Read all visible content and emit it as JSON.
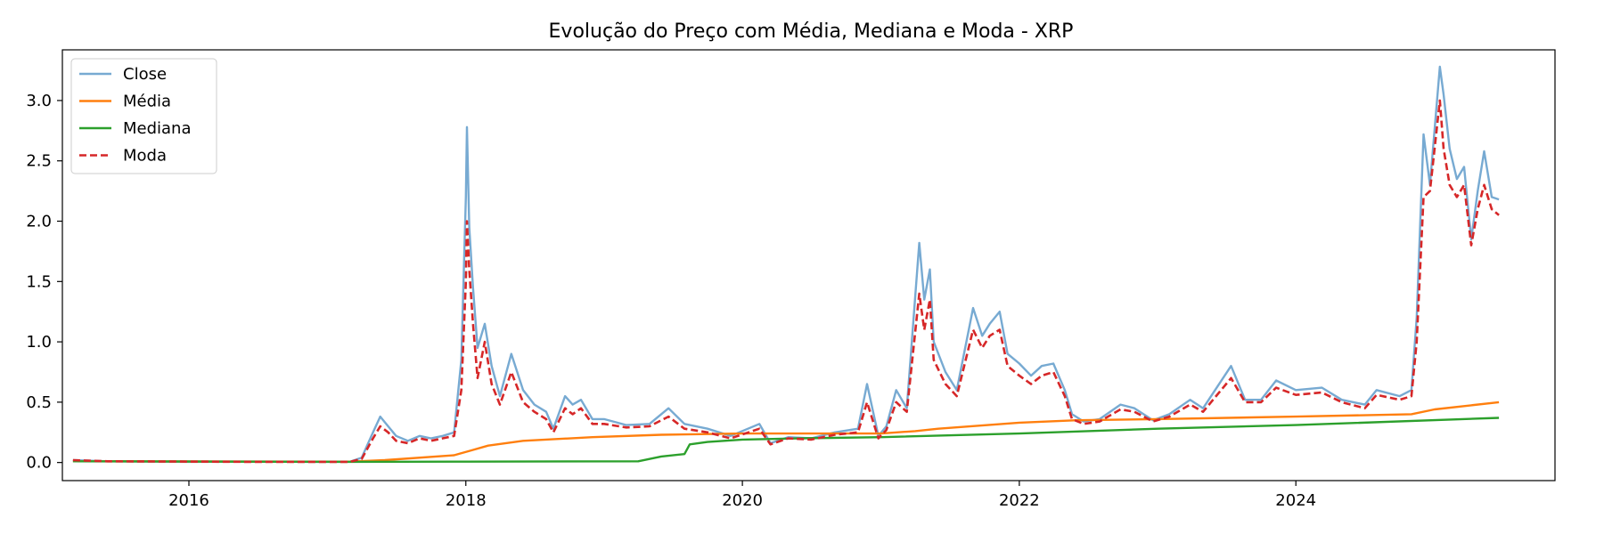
{
  "chart_data": {
    "type": "line",
    "title": "Evolução do Preço com Média, Mediana e Moda - XRP",
    "xlabel": "",
    "ylabel": "",
    "xlim": [
      "2015-02-01",
      "2025-11-15"
    ],
    "ylim": [
      -0.15,
      3.42
    ],
    "x_ticks": [
      "2016",
      "2018",
      "2020",
      "2022",
      "2024"
    ],
    "y_ticks": [
      "0.0",
      "0.5",
      "1.0",
      "1.5",
      "2.0",
      "2.5",
      "3.0"
    ],
    "grid": false,
    "legend": "top-left",
    "series": [
      {
        "name": "Close",
        "color": "#77aad2",
        "style": "solid",
        "points": [
          [
            "2015-03-01",
            0.02
          ],
          [
            "2015-06-01",
            0.01
          ],
          [
            "2015-09-01",
            0.008
          ],
          [
            "2016-01-01",
            0.006
          ],
          [
            "2016-06-01",
            0.007
          ],
          [
            "2016-12-01",
            0.006
          ],
          [
            "2017-03-01",
            0.007
          ],
          [
            "2017-04-01",
            0.04
          ],
          [
            "2017-05-01",
            0.25
          ],
          [
            "2017-05-20",
            0.38
          ],
          [
            "2017-06-10",
            0.3
          ],
          [
            "2017-07-01",
            0.22
          ],
          [
            "2017-08-01",
            0.18
          ],
          [
            "2017-09-01",
            0.22
          ],
          [
            "2017-10-01",
            0.2
          ],
          [
            "2017-11-01",
            0.22
          ],
          [
            "2017-12-01",
            0.25
          ],
          [
            "2017-12-20",
            0.85
          ],
          [
            "2018-01-01",
            2.2
          ],
          [
            "2018-01-04",
            2.78
          ],
          [
            "2018-01-10",
            1.95
          ],
          [
            "2018-01-20",
            1.45
          ],
          [
            "2018-02-01",
            0.95
          ],
          [
            "2018-02-20",
            1.15
          ],
          [
            "2018-03-10",
            0.8
          ],
          [
            "2018-04-01",
            0.55
          ],
          [
            "2018-05-01",
            0.9
          ],
          [
            "2018-06-01",
            0.6
          ],
          [
            "2018-07-01",
            0.48
          ],
          [
            "2018-08-01",
            0.42
          ],
          [
            "2018-08-20",
            0.28
          ],
          [
            "2018-09-20",
            0.55
          ],
          [
            "2018-10-10",
            0.48
          ],
          [
            "2018-11-01",
            0.52
          ],
          [
            "2018-12-01",
            0.36
          ],
          [
            "2019-01-01",
            0.36
          ],
          [
            "2019-03-01",
            0.31
          ],
          [
            "2019-05-01",
            0.32
          ],
          [
            "2019-06-20",
            0.45
          ],
          [
            "2019-08-01",
            0.32
          ],
          [
            "2019-10-01",
            0.28
          ],
          [
            "2019-12-01",
            0.22
          ],
          [
            "2020-02-15",
            0.32
          ],
          [
            "2020-03-15",
            0.16
          ],
          [
            "2020-05-01",
            0.21
          ],
          [
            "2020-07-01",
            0.2
          ],
          [
            "2020-09-01",
            0.25
          ],
          [
            "2020-11-01",
            0.28
          ],
          [
            "2020-11-25",
            0.65
          ],
          [
            "2020-12-25",
            0.22
          ],
          [
            "2021-01-15",
            0.3
          ],
          [
            "2021-02-10",
            0.6
          ],
          [
            "2021-03-10",
            0.45
          ],
          [
            "2021-04-12",
            1.82
          ],
          [
            "2021-04-25",
            1.35
          ],
          [
            "2021-05-10",
            1.6
          ],
          [
            "2021-05-20",
            1.0
          ],
          [
            "2021-06-20",
            0.75
          ],
          [
            "2021-07-20",
            0.6
          ],
          [
            "2021-09-01",
            1.28
          ],
          [
            "2021-09-25",
            1.05
          ],
          [
            "2021-10-15",
            1.15
          ],
          [
            "2021-11-10",
            1.25
          ],
          [
            "2021-12-01",
            0.9
          ],
          [
            "2022-01-01",
            0.82
          ],
          [
            "2022-02-01",
            0.72
          ],
          [
            "2022-03-01",
            0.8
          ],
          [
            "2022-04-01",
            0.82
          ],
          [
            "2022-05-01",
            0.6
          ],
          [
            "2022-05-20",
            0.4
          ],
          [
            "2022-06-20",
            0.34
          ],
          [
            "2022-08-01",
            0.36
          ],
          [
            "2022-09-25",
            0.48
          ],
          [
            "2022-11-01",
            0.45
          ],
          [
            "2022-12-20",
            0.35
          ],
          [
            "2023-02-01",
            0.4
          ],
          [
            "2023-03-28",
            0.52
          ],
          [
            "2023-05-01",
            0.45
          ],
          [
            "2023-07-14",
            0.8
          ],
          [
            "2023-08-20",
            0.52
          ],
          [
            "2023-10-01",
            0.52
          ],
          [
            "2023-11-10",
            0.68
          ],
          [
            "2024-01-01",
            0.6
          ],
          [
            "2024-03-10",
            0.62
          ],
          [
            "2024-05-01",
            0.52
          ],
          [
            "2024-07-01",
            0.48
          ],
          [
            "2024-08-01",
            0.6
          ],
          [
            "2024-10-01",
            0.55
          ],
          [
            "2024-11-01",
            0.6
          ],
          [
            "2024-11-15",
            1.2
          ],
          [
            "2024-12-03",
            2.72
          ],
          [
            "2024-12-20",
            2.3
          ],
          [
            "2025-01-15",
            3.28
          ],
          [
            "2025-01-25",
            3.05
          ],
          [
            "2025-02-10",
            2.6
          ],
          [
            "2025-03-01",
            2.35
          ],
          [
            "2025-03-20",
            2.45
          ],
          [
            "2025-04-08",
            1.85
          ],
          [
            "2025-04-25",
            2.25
          ],
          [
            "2025-05-12",
            2.58
          ],
          [
            "2025-06-01",
            2.2
          ],
          [
            "2025-06-20",
            2.18
          ]
        ]
      },
      {
        "name": "Média",
        "color": "#ff7f0e",
        "style": "solid",
        "points": [
          [
            "2015-03-01",
            0.01
          ],
          [
            "2017-03-01",
            0.007
          ],
          [
            "2017-06-01",
            0.02
          ],
          [
            "2017-12-01",
            0.06
          ],
          [
            "2018-01-15",
            0.1
          ],
          [
            "2018-03-01",
            0.14
          ],
          [
            "2018-06-01",
            0.18
          ],
          [
            "2018-12-01",
            0.21
          ],
          [
            "2019-06-01",
            0.23
          ],
          [
            "2020-01-01",
            0.24
          ],
          [
            "2020-06-01",
            0.24
          ],
          [
            "2021-01-01",
            0.24
          ],
          [
            "2021-04-01",
            0.26
          ],
          [
            "2021-06-01",
            0.28
          ],
          [
            "2022-01-01",
            0.33
          ],
          [
            "2022-06-01",
            0.35
          ],
          [
            "2023-01-01",
            0.36
          ],
          [
            "2024-01-01",
            0.38
          ],
          [
            "2024-11-01",
            0.4
          ],
          [
            "2025-01-01",
            0.44
          ],
          [
            "2025-06-20",
            0.5
          ]
        ]
      },
      {
        "name": "Mediana",
        "color": "#2ca02c",
        "style": "solid",
        "points": [
          [
            "2015-03-01",
            0.01
          ],
          [
            "2017-03-01",
            0.006
          ],
          [
            "2018-01-01",
            0.007
          ],
          [
            "2019-04-01",
            0.01
          ],
          [
            "2019-06-01",
            0.05
          ],
          [
            "2019-08-01",
            0.07
          ],
          [
            "2019-08-15",
            0.15
          ],
          [
            "2019-10-01",
            0.17
          ],
          [
            "2020-01-01",
            0.19
          ],
          [
            "2020-06-01",
            0.2
          ],
          [
            "2021-01-01",
            0.21
          ],
          [
            "2022-01-01",
            0.24
          ],
          [
            "2023-01-01",
            0.28
          ],
          [
            "2024-01-01",
            0.31
          ],
          [
            "2025-06-20",
            0.37
          ]
        ]
      },
      {
        "name": "Moda",
        "color": "#d62728",
        "style": "dashed",
        "points": [
          [
            "2015-03-01",
            0.02
          ],
          [
            "2015-06-01",
            0.01
          ],
          [
            "2016-06-01",
            0.006
          ],
          [
            "2017-03-01",
            0.006
          ],
          [
            "2017-04-01",
            0.03
          ],
          [
            "2017-05-01",
            0.2
          ],
          [
            "2017-05-20",
            0.3
          ],
          [
            "2017-06-10",
            0.25
          ],
          [
            "2017-07-01",
            0.18
          ],
          [
            "2017-08-01",
            0.16
          ],
          [
            "2017-09-01",
            0.2
          ],
          [
            "2017-10-01",
            0.18
          ],
          [
            "2017-11-01",
            0.2
          ],
          [
            "2017-12-01",
            0.22
          ],
          [
            "2017-12-20",
            0.6
          ],
          [
            "2018-01-01",
            1.5
          ],
          [
            "2018-01-04",
            2.0
          ],
          [
            "2018-01-10",
            1.6
          ],
          [
            "2018-01-20",
            1.15
          ],
          [
            "2018-02-01",
            0.7
          ],
          [
            "2018-02-20",
            1.0
          ],
          [
            "2018-03-10",
            0.65
          ],
          [
            "2018-04-01",
            0.48
          ],
          [
            "2018-05-01",
            0.75
          ],
          [
            "2018-06-01",
            0.5
          ],
          [
            "2018-07-01",
            0.42
          ],
          [
            "2018-08-01",
            0.36
          ],
          [
            "2018-08-20",
            0.25
          ],
          [
            "2018-09-20",
            0.45
          ],
          [
            "2018-10-10",
            0.4
          ],
          [
            "2018-11-01",
            0.45
          ],
          [
            "2018-12-01",
            0.32
          ],
          [
            "2019-01-01",
            0.32
          ],
          [
            "2019-03-01",
            0.29
          ],
          [
            "2019-05-01",
            0.3
          ],
          [
            "2019-06-20",
            0.38
          ],
          [
            "2019-08-01",
            0.28
          ],
          [
            "2019-10-01",
            0.25
          ],
          [
            "2019-12-01",
            0.2
          ],
          [
            "2020-02-15",
            0.28
          ],
          [
            "2020-03-15",
            0.15
          ],
          [
            "2020-05-01",
            0.2
          ],
          [
            "2020-07-01",
            0.19
          ],
          [
            "2020-09-01",
            0.23
          ],
          [
            "2020-11-01",
            0.25
          ],
          [
            "2020-11-25",
            0.5
          ],
          [
            "2020-12-25",
            0.2
          ],
          [
            "2021-01-15",
            0.27
          ],
          [
            "2021-02-10",
            0.5
          ],
          [
            "2021-03-10",
            0.42
          ],
          [
            "2021-04-12",
            1.4
          ],
          [
            "2021-04-25",
            1.1
          ],
          [
            "2021-05-10",
            1.35
          ],
          [
            "2021-05-20",
            0.85
          ],
          [
            "2021-06-20",
            0.65
          ],
          [
            "2021-07-20",
            0.55
          ],
          [
            "2021-09-01",
            1.1
          ],
          [
            "2021-09-25",
            0.95
          ],
          [
            "2021-10-15",
            1.05
          ],
          [
            "2021-11-10",
            1.1
          ],
          [
            "2021-12-01",
            0.8
          ],
          [
            "2022-01-01",
            0.72
          ],
          [
            "2022-02-01",
            0.65
          ],
          [
            "2022-03-01",
            0.72
          ],
          [
            "2022-04-01",
            0.75
          ],
          [
            "2022-05-01",
            0.55
          ],
          [
            "2022-05-20",
            0.36
          ],
          [
            "2022-06-20",
            0.32
          ],
          [
            "2022-08-01",
            0.34
          ],
          [
            "2022-09-25",
            0.44
          ],
          [
            "2022-11-01",
            0.42
          ],
          [
            "2022-12-20",
            0.34
          ],
          [
            "2023-02-01",
            0.38
          ],
          [
            "2023-03-28",
            0.48
          ],
          [
            "2023-05-01",
            0.42
          ],
          [
            "2023-07-14",
            0.7
          ],
          [
            "2023-08-20",
            0.5
          ],
          [
            "2023-10-01",
            0.5
          ],
          [
            "2023-11-10",
            0.62
          ],
          [
            "2024-01-01",
            0.56
          ],
          [
            "2024-03-10",
            0.58
          ],
          [
            "2024-05-01",
            0.5
          ],
          [
            "2024-07-01",
            0.45
          ],
          [
            "2024-08-01",
            0.56
          ],
          [
            "2024-10-01",
            0.52
          ],
          [
            "2024-11-01",
            0.55
          ],
          [
            "2024-11-15",
            1.0
          ],
          [
            "2024-12-03",
            2.2
          ],
          [
            "2024-12-20",
            2.25
          ],
          [
            "2025-01-15",
            3.0
          ],
          [
            "2025-01-25",
            2.6
          ],
          [
            "2025-02-10",
            2.3
          ],
          [
            "2025-03-01",
            2.2
          ],
          [
            "2025-03-20",
            2.3
          ],
          [
            "2025-04-08",
            1.8
          ],
          [
            "2025-04-25",
            2.1
          ],
          [
            "2025-05-12",
            2.3
          ],
          [
            "2025-06-01",
            2.1
          ],
          [
            "2025-06-20",
            2.05
          ]
        ]
      }
    ]
  }
}
